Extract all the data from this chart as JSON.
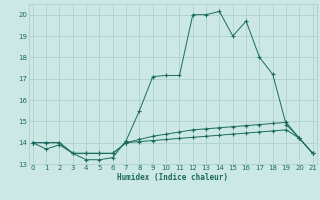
{
  "xlabel": "Humidex (Indice chaleur)",
  "x": [
    0,
    1,
    2,
    3,
    4,
    5,
    6,
    7,
    8,
    9,
    10,
    11,
    12,
    13,
    14,
    15,
    16,
    17,
    18,
    19,
    20,
    21
  ],
  "line1": [
    14.0,
    13.7,
    13.9,
    13.5,
    13.2,
    13.2,
    13.3,
    14.1,
    15.5,
    17.1,
    17.15,
    17.15,
    20.0,
    20.0,
    20.15,
    19.0,
    19.7,
    18.0,
    17.2,
    14.85,
    14.2,
    13.5
  ],
  "line2": [
    14.0,
    14.0,
    14.0,
    13.5,
    13.5,
    13.5,
    13.5,
    14.0,
    14.15,
    14.3,
    14.4,
    14.5,
    14.6,
    14.65,
    14.7,
    14.75,
    14.8,
    14.85,
    14.9,
    14.95,
    14.2,
    13.5
  ],
  "line3": [
    14.0,
    14.0,
    14.0,
    13.5,
    13.5,
    13.5,
    13.5,
    14.0,
    14.05,
    14.1,
    14.15,
    14.2,
    14.25,
    14.3,
    14.35,
    14.4,
    14.45,
    14.5,
    14.55,
    14.6,
    14.2,
    13.5
  ],
  "line_color": "#1a6b5e",
  "bg_color": "#cce8e4",
  "grid_color": "#aaccca",
  "ylim": [
    13.0,
    20.5
  ],
  "yticks": [
    13,
    14,
    15,
    16,
    17,
    18,
    19,
    20
  ],
  "xticks": [
    0,
    1,
    2,
    3,
    4,
    5,
    6,
    7,
    8,
    9,
    10,
    11,
    12,
    13,
    14,
    15,
    16,
    17,
    18,
    19,
    20,
    21
  ],
  "xlim": [
    -0.3,
    21.3
  ]
}
